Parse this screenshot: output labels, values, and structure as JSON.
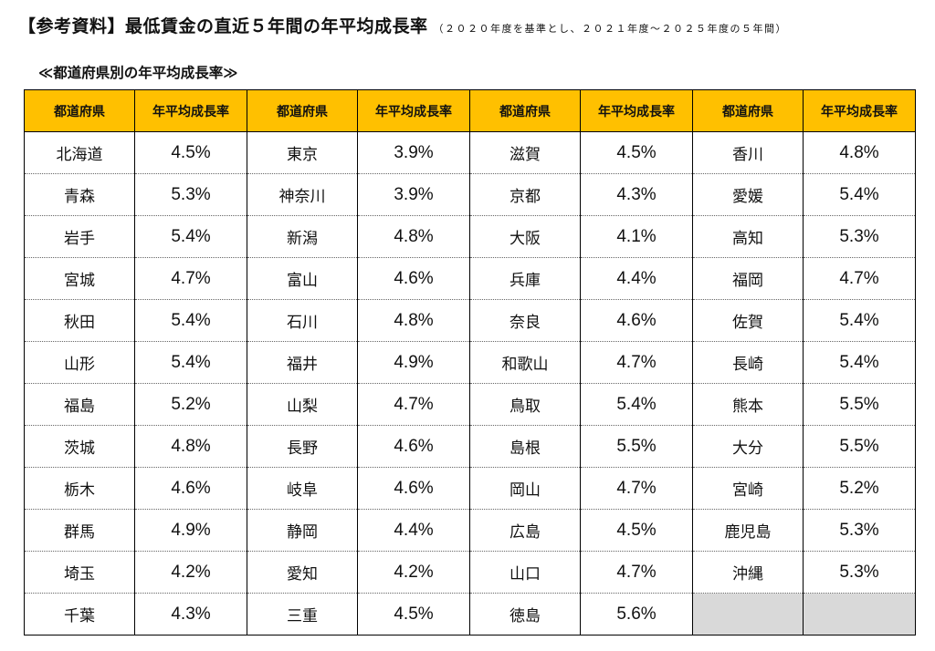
{
  "title": {
    "main": "【参考資料】最低賃金の直近５年間の年平均成長率",
    "sub": "（２０２０年度を基準とし、２０２１年度～２０２５年度の５年間）"
  },
  "subheading": "≪都道府県別の年平均成長率≫",
  "colors": {
    "header_bg": "#ffc000",
    "empty_cell_bg": "#d9d9d9"
  },
  "table": {
    "headers": [
      "都道府県",
      "年平均成長率",
      "都道府県",
      "年平均成長率",
      "都道府県",
      "年平均成長率",
      "都道府県",
      "年平均成長率"
    ],
    "rows": [
      [
        {
          "pref": "北海道",
          "rate": "4.5%"
        },
        {
          "pref": "東京",
          "rate": "3.9%"
        },
        {
          "pref": "滋賀",
          "rate": "4.5%"
        },
        {
          "pref": "香川",
          "rate": "4.8%"
        }
      ],
      [
        {
          "pref": "青森",
          "rate": "5.3%"
        },
        {
          "pref": "神奈川",
          "rate": "3.9%"
        },
        {
          "pref": "京都",
          "rate": "4.3%"
        },
        {
          "pref": "愛媛",
          "rate": "5.4%"
        }
      ],
      [
        {
          "pref": "岩手",
          "rate": "5.4%"
        },
        {
          "pref": "新潟",
          "rate": "4.8%"
        },
        {
          "pref": "大阪",
          "rate": "4.1%"
        },
        {
          "pref": "高知",
          "rate": "5.3%"
        }
      ],
      [
        {
          "pref": "宮城",
          "rate": "4.7%"
        },
        {
          "pref": "富山",
          "rate": "4.6%"
        },
        {
          "pref": "兵庫",
          "rate": "4.4%"
        },
        {
          "pref": "福岡",
          "rate": "4.7%"
        }
      ],
      [
        {
          "pref": "秋田",
          "rate": "5.4%"
        },
        {
          "pref": "石川",
          "rate": "4.8%"
        },
        {
          "pref": "奈良",
          "rate": "4.6%"
        },
        {
          "pref": "佐賀",
          "rate": "5.4%"
        }
      ],
      [
        {
          "pref": "山形",
          "rate": "5.4%"
        },
        {
          "pref": "福井",
          "rate": "4.9%"
        },
        {
          "pref": "和歌山",
          "rate": "4.7%"
        },
        {
          "pref": "長崎",
          "rate": "5.4%"
        }
      ],
      [
        {
          "pref": "福島",
          "rate": "5.2%"
        },
        {
          "pref": "山梨",
          "rate": "4.7%"
        },
        {
          "pref": "鳥取",
          "rate": "5.4%"
        },
        {
          "pref": "熊本",
          "rate": "5.5%"
        }
      ],
      [
        {
          "pref": "茨城",
          "rate": "4.8%"
        },
        {
          "pref": "長野",
          "rate": "4.6%"
        },
        {
          "pref": "島根",
          "rate": "5.5%"
        },
        {
          "pref": "大分",
          "rate": "5.5%"
        }
      ],
      [
        {
          "pref": "栃木",
          "rate": "4.6%"
        },
        {
          "pref": "岐阜",
          "rate": "4.6%"
        },
        {
          "pref": "岡山",
          "rate": "4.7%"
        },
        {
          "pref": "宮崎",
          "rate": "5.2%"
        }
      ],
      [
        {
          "pref": "群馬",
          "rate": "4.9%"
        },
        {
          "pref": "静岡",
          "rate": "4.4%"
        },
        {
          "pref": "広島",
          "rate": "4.5%"
        },
        {
          "pref": "鹿児島",
          "rate": "5.3%"
        }
      ],
      [
        {
          "pref": "埼玉",
          "rate": "4.2%"
        },
        {
          "pref": "愛知",
          "rate": "4.2%"
        },
        {
          "pref": "山口",
          "rate": "4.7%"
        },
        {
          "pref": "沖縄",
          "rate": "5.3%"
        }
      ],
      [
        {
          "pref": "千葉",
          "rate": "4.3%"
        },
        {
          "pref": "三重",
          "rate": "4.5%"
        },
        {
          "pref": "徳島",
          "rate": "5.6%"
        },
        null
      ]
    ]
  }
}
